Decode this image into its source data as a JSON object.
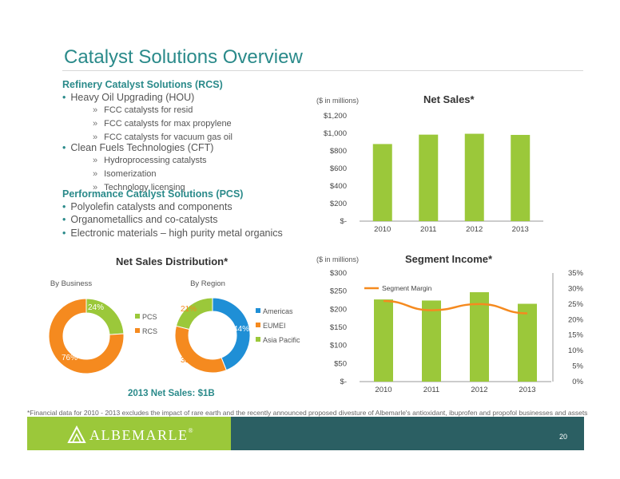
{
  "title": "Catalyst Solutions Overview",
  "rcs": {
    "heading": "Refinery Catalyst Solutions (RCS)",
    "items": [
      {
        "label": "Heavy Oil Upgrading (HOU)",
        "subs": [
          "FCC catalysts for resid",
          "FCC catalysts for max propylene",
          "FCC catalysts for vacuum gas oil"
        ]
      },
      {
        "label": "Clean Fuels Technologies (CFT)",
        "subs": [
          "Hydroprocessing catalysts",
          "Isomerization",
          "Technology licensing"
        ]
      }
    ]
  },
  "pcs": {
    "heading": "Performance Catalyst Solutions (PCS)",
    "items": [
      "Polyolefin catalysts and components",
      "Organometallics and co-catalysts",
      "Electronic materials – high purity metal organics"
    ]
  },
  "colors": {
    "teal": "#2a8a8a",
    "green": "#9bc83a",
    "orange": "#f58a1f",
    "blue": "#1f8fd6",
    "dark_teal": "#2b5f63"
  },
  "footnote": "*Financial data for 2010 - 2013 excludes the impact of rare earth and the recently announced proposed divesture of Albemarle's antioxidant, ibuprofen and propofol businesses and assets",
  "logo": "ALBEMARLE",
  "page_number": "20",
  "distribution": {
    "title": "Net Sales Distribution*",
    "total_label": "2013 Net Sales: $1B"
  },
  "chart_data": [
    {
      "type": "bar",
      "title": "Net Sales*",
      "unit_label": "($ in millions)",
      "categories": [
        "2010",
        "2011",
        "2012",
        "2013"
      ],
      "values": [
        878,
        985,
        995,
        982
      ],
      "ylim": [
        0,
        1200
      ],
      "yticks": [
        "$-",
        "$200",
        "$400",
        "$600",
        "$800",
        "$1,000",
        "$1,200"
      ],
      "grid": false
    },
    {
      "type": "bar",
      "title": "Segment Income*",
      "unit_label": "($ in millions)",
      "categories": [
        "2010",
        "2011",
        "2012",
        "2013"
      ],
      "series": [
        {
          "name": "Segment Income",
          "values": [
            227,
            224,
            247,
            215
          ]
        },
        {
          "name": "Segment Margin",
          "type": "line",
          "axis": "right",
          "values": [
            26.0,
            23.0,
            25.0,
            22.0
          ]
        }
      ],
      "ylim": [
        0,
        300
      ],
      "yticks": [
        "$-",
        "$50",
        "$100",
        "$150",
        "$200",
        "$250",
        "$300"
      ],
      "y2lim": [
        0,
        35
      ],
      "y2ticks": [
        "0%",
        "5%",
        "10%",
        "15%",
        "20%",
        "25%",
        "30%",
        "35%"
      ],
      "legend": "top-left"
    },
    {
      "type": "pie",
      "title": "By Business",
      "donut": true,
      "labels": [
        "PCS",
        "RCS"
      ],
      "values": [
        24,
        76
      ],
      "value_labels": [
        "24%",
        "76%"
      ],
      "colors": [
        "#9bc83a",
        "#f58a1f"
      ],
      "legend": "right"
    },
    {
      "type": "pie",
      "title": "By Region",
      "donut": true,
      "labels": [
        "Americas",
        "EUMEI",
        "Asia Pacific"
      ],
      "values": [
        44,
        35,
        21
      ],
      "value_labels": [
        "44%",
        "35%",
        "21%"
      ],
      "colors": [
        "#1f8fd6",
        "#f58a1f",
        "#9bc83a"
      ],
      "legend": "right"
    }
  ]
}
